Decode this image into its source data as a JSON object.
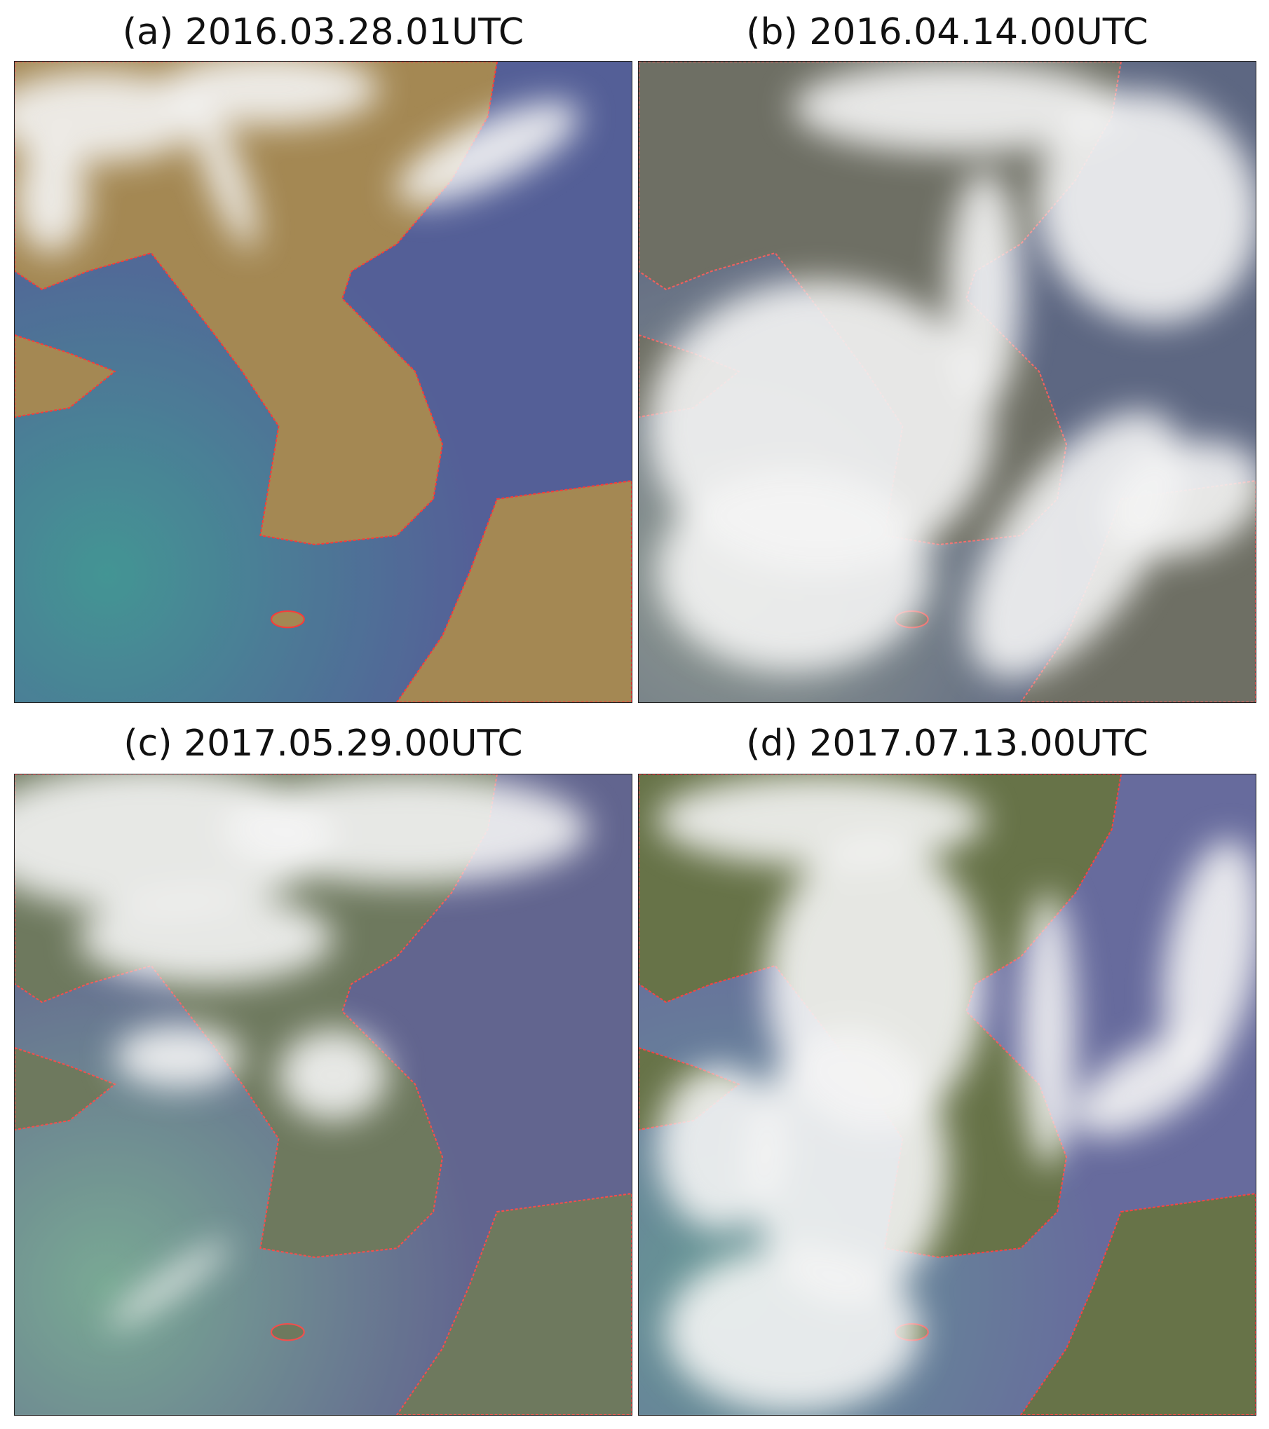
{
  "panels": [
    {
      "title": "(a) 2016.03.28.01UTC"
    },
    {
      "title": "(b) 2016.04.14.00UTC"
    },
    {
      "title": "(c) 2017.05.29.00UTC"
    },
    {
      "title": "(d) 2017.07.13.00UTC"
    }
  ]
}
